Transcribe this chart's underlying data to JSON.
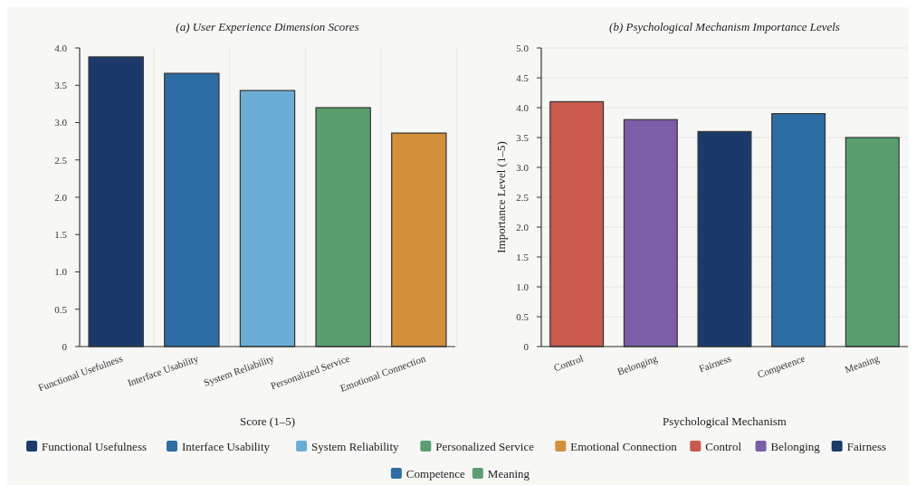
{
  "chart_data": [
    {
      "type": "bar",
      "title": "(a) User Experience Dimension Scores",
      "xlabel": "Score (1–5)",
      "categories": [
        "Functional Usefulness",
        "Interface Usability",
        "System Reliability",
        "Personalized Service",
        "Emotional Connection"
      ],
      "stacked": true,
      "series": [
        {
          "name": "Functional Usefulness",
          "color": "#1b3a6b",
          "values": [
            3.88,
            null,
            null,
            null,
            null
          ]
        },
        {
          "name": "Interface Usability",
          "color": "#2e6da4",
          "values": [
            null,
            3.66,
            null,
            null,
            null
          ]
        },
        {
          "name": "System Reliability",
          "color": "#6aaed6",
          "values": [
            null,
            null,
            3.43,
            null,
            null
          ]
        },
        {
          "name": "Personalized Service",
          "color": "#5a9e6f",
          "values": [
            null,
            null,
            null,
            3.2,
            null
          ]
        },
        {
          "name": "Emotional Connection",
          "color": "#d38f3a",
          "values": [
            null,
            null,
            null,
            null,
            2.86
          ]
        }
      ],
      "ylim": [
        0,
        4
      ],
      "yticks": [
        0,
        0.5,
        {
          "value": 1,
          "label": "1.0"
        },
        1.5,
        {
          "value": 2,
          "label": "2.0"
        },
        2.5,
        {
          "value": 3,
          "label": "3.0"
        },
        3.5,
        {
          "value": 4,
          "label": "4.0"
        }
      ],
      "grid": "x",
      "legend": "bottom"
    },
    {
      "type": "bar",
      "title": "(b) Psychological Mechanism Importance Levels",
      "xlabel": "Psychological Mechanism",
      "ylabel": "Importance Level (1–5)",
      "categories": [
        "Control",
        "Belonging",
        "Fairness",
        "Competence",
        "Meaning"
      ],
      "stacked": true,
      "series": [
        {
          "name": "Control",
          "color": "#c8594b",
          "values": [
            4.1,
            null,
            null,
            null,
            null
          ]
        },
        {
          "name": "Belonging",
          "color": "#7b5ea7",
          "values": [
            null,
            3.8,
            null,
            null,
            null
          ]
        },
        {
          "name": "Fairness",
          "color": "#1b3a6b",
          "values": [
            null,
            null,
            3.6,
            null,
            null
          ]
        },
        {
          "name": "Competence",
          "color": "#2e6da4",
          "values": [
            null,
            null,
            null,
            3.9,
            null
          ]
        },
        {
          "name": "Meaning",
          "color": "#5a9e6f",
          "values": [
            null,
            null,
            null,
            null,
            3.5
          ]
        }
      ],
      "ylim": [
        0,
        5
      ],
      "yticks": [
        0,
        0.5,
        {
          "value": 1,
          "label": "1.0"
        },
        1.5,
        {
          "value": 2,
          "label": "2.0"
        },
        2.5,
        {
          "value": 3,
          "label": "3.0"
        },
        3.5,
        {
          "value": 4,
          "label": "4.0"
        },
        4.5,
        {
          "value": 5,
          "label": "5.0"
        }
      ],
      "grid": "y",
      "legend": "bottom"
    }
  ]
}
